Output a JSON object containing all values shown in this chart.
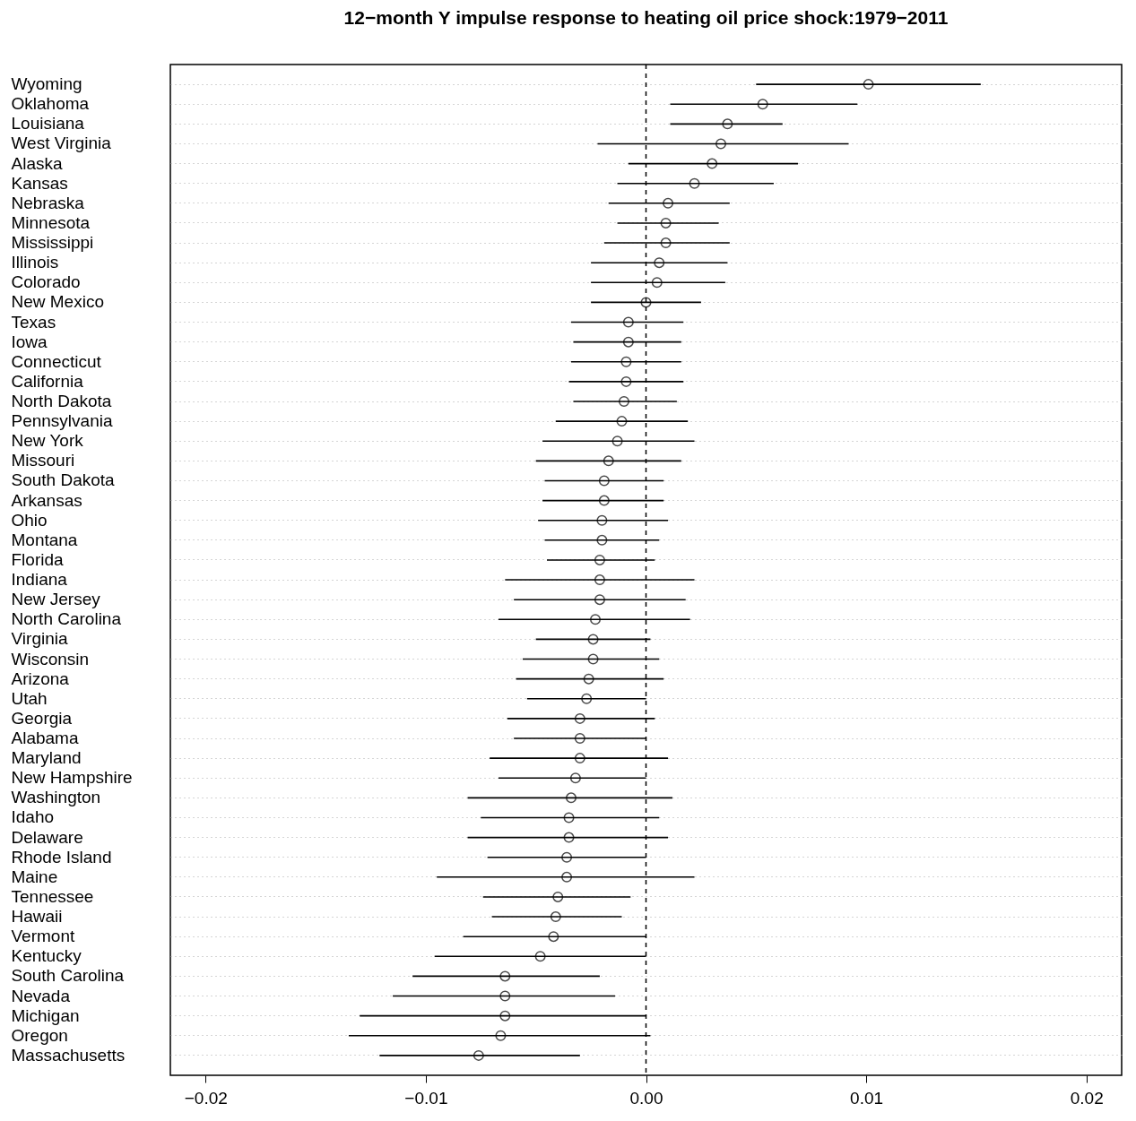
{
  "chart_data": {
    "type": "scatter",
    "title": "12−month Y impulse response to heating oil price shock:1979−2011",
    "categories": [
      "Wyoming",
      "Oklahoma",
      "Louisiana",
      "West Virginia",
      "Alaska",
      "Kansas",
      "Nebraska",
      "Minnesota",
      "Mississippi",
      "Illinois",
      "Colorado",
      "New Mexico",
      "Texas",
      "Iowa",
      "Connecticut",
      "California",
      "North Dakota",
      "Pennsylvania",
      "New York",
      "Missouri",
      "South Dakota",
      "Arkansas",
      "Ohio",
      "Montana",
      "Florida",
      "Indiana",
      "New Jersey",
      "North Carolina",
      "Virginia",
      "Wisconsin",
      "Arizona",
      "Utah",
      "Georgia",
      "Alabama",
      "Maryland",
      "New Hampshire",
      "Washington",
      "Idaho",
      "Delaware",
      "Rhode Island",
      "Maine",
      "Tennessee",
      "Hawaii",
      "Vermont",
      "Kentucky",
      "South Carolina",
      "Nevada",
      "Michigan",
      "Oregon",
      "Massachusetts"
    ],
    "series": [
      {
        "color": "#000000",
        "values": [
          0.0101,
          0.0053,
          0.0037,
          0.0034,
          0.003,
          0.0022,
          0.001,
          0.0009,
          0.0009,
          0.0006,
          0.0005,
          0.0,
          -0.0008,
          -0.0008,
          -0.0009,
          -0.0009,
          -0.001,
          -0.0011,
          -0.0013,
          -0.0017,
          -0.0019,
          -0.0019,
          -0.002,
          -0.002,
          -0.0021,
          -0.0021,
          -0.0021,
          -0.0023,
          -0.0024,
          -0.0024,
          -0.0026,
          -0.0027,
          -0.003,
          -0.003,
          -0.003,
          -0.0032,
          -0.0034,
          -0.0035,
          -0.0035,
          -0.0036,
          -0.0036,
          -0.004,
          -0.0041,
          -0.0042,
          -0.0048,
          -0.0064,
          -0.0064,
          -0.0064,
          -0.0066,
          -0.0076
        ],
        "errors": [
          [
            0.005,
            0.0152
          ],
          [
            0.0011,
            0.0096
          ],
          [
            0.0011,
            0.0062
          ],
          [
            -0.0022,
            0.0092
          ],
          [
            -0.0008,
            0.0069
          ],
          [
            -0.0013,
            0.0058
          ],
          [
            -0.0017,
            0.0038
          ],
          [
            -0.0013,
            0.0033
          ],
          [
            -0.0019,
            0.0038
          ],
          [
            -0.0025,
            0.0037
          ],
          [
            -0.0025,
            0.0036
          ],
          [
            -0.0025,
            0.0025
          ],
          [
            -0.0034,
            0.0017
          ],
          [
            -0.0033,
            0.0016
          ],
          [
            -0.0034,
            0.0016
          ],
          [
            -0.0035,
            0.0017
          ],
          [
            -0.0033,
            0.0014
          ],
          [
            -0.0041,
            0.0019
          ],
          [
            -0.0047,
            0.0022
          ],
          [
            -0.005,
            0.0016
          ],
          [
            -0.0046,
            0.0008
          ],
          [
            -0.0047,
            0.0008
          ],
          [
            -0.0049,
            0.001
          ],
          [
            -0.0046,
            0.0006
          ],
          [
            -0.0045,
            0.0004
          ],
          [
            -0.0064,
            0.0022
          ],
          [
            -0.006,
            0.0018
          ],
          [
            -0.0067,
            0.002
          ],
          [
            -0.005,
            0.0002
          ],
          [
            -0.0056,
            0.0006
          ],
          [
            -0.0059,
            0.0008
          ],
          [
            -0.0054,
            0.0
          ],
          [
            -0.0063,
            0.0004
          ],
          [
            -0.006,
            0.0
          ],
          [
            -0.0071,
            0.001
          ],
          [
            -0.0067,
            0.0
          ],
          [
            -0.0081,
            0.0012
          ],
          [
            -0.0075,
            0.0006
          ],
          [
            -0.0081,
            0.001
          ],
          [
            -0.0072,
            0.0
          ],
          [
            -0.0095,
            0.0022
          ],
          [
            -0.0074,
            -0.0007
          ],
          [
            -0.007,
            -0.0011
          ],
          [
            -0.0083,
            0.0
          ],
          [
            -0.0096,
            0.0
          ],
          [
            -0.0106,
            -0.0021
          ],
          [
            -0.0115,
            -0.0014
          ],
          [
            -0.013,
            0.0
          ],
          [
            -0.0135,
            0.0002
          ],
          [
            -0.0121,
            -0.003
          ]
        ]
      }
    ],
    "xlim": [
      -0.0216,
      0.0216
    ],
    "xticks": [
      {
        "value": -0.02,
        "label": "−0.02"
      },
      {
        "value": -0.01,
        "label": "−0.01"
      },
      {
        "value": 0,
        "label": "0.00"
      },
      {
        "value": 0.01,
        "label": "0.01"
      },
      {
        "value": 0.02,
        "label": "0.02"
      }
    ],
    "ref_lines": [
      {
        "axis": "x",
        "value": 0,
        "line_style": "dashed",
        "color": "#000000"
      }
    ],
    "orientation": "horizontal",
    "grid": "y",
    "marker": "circle"
  }
}
